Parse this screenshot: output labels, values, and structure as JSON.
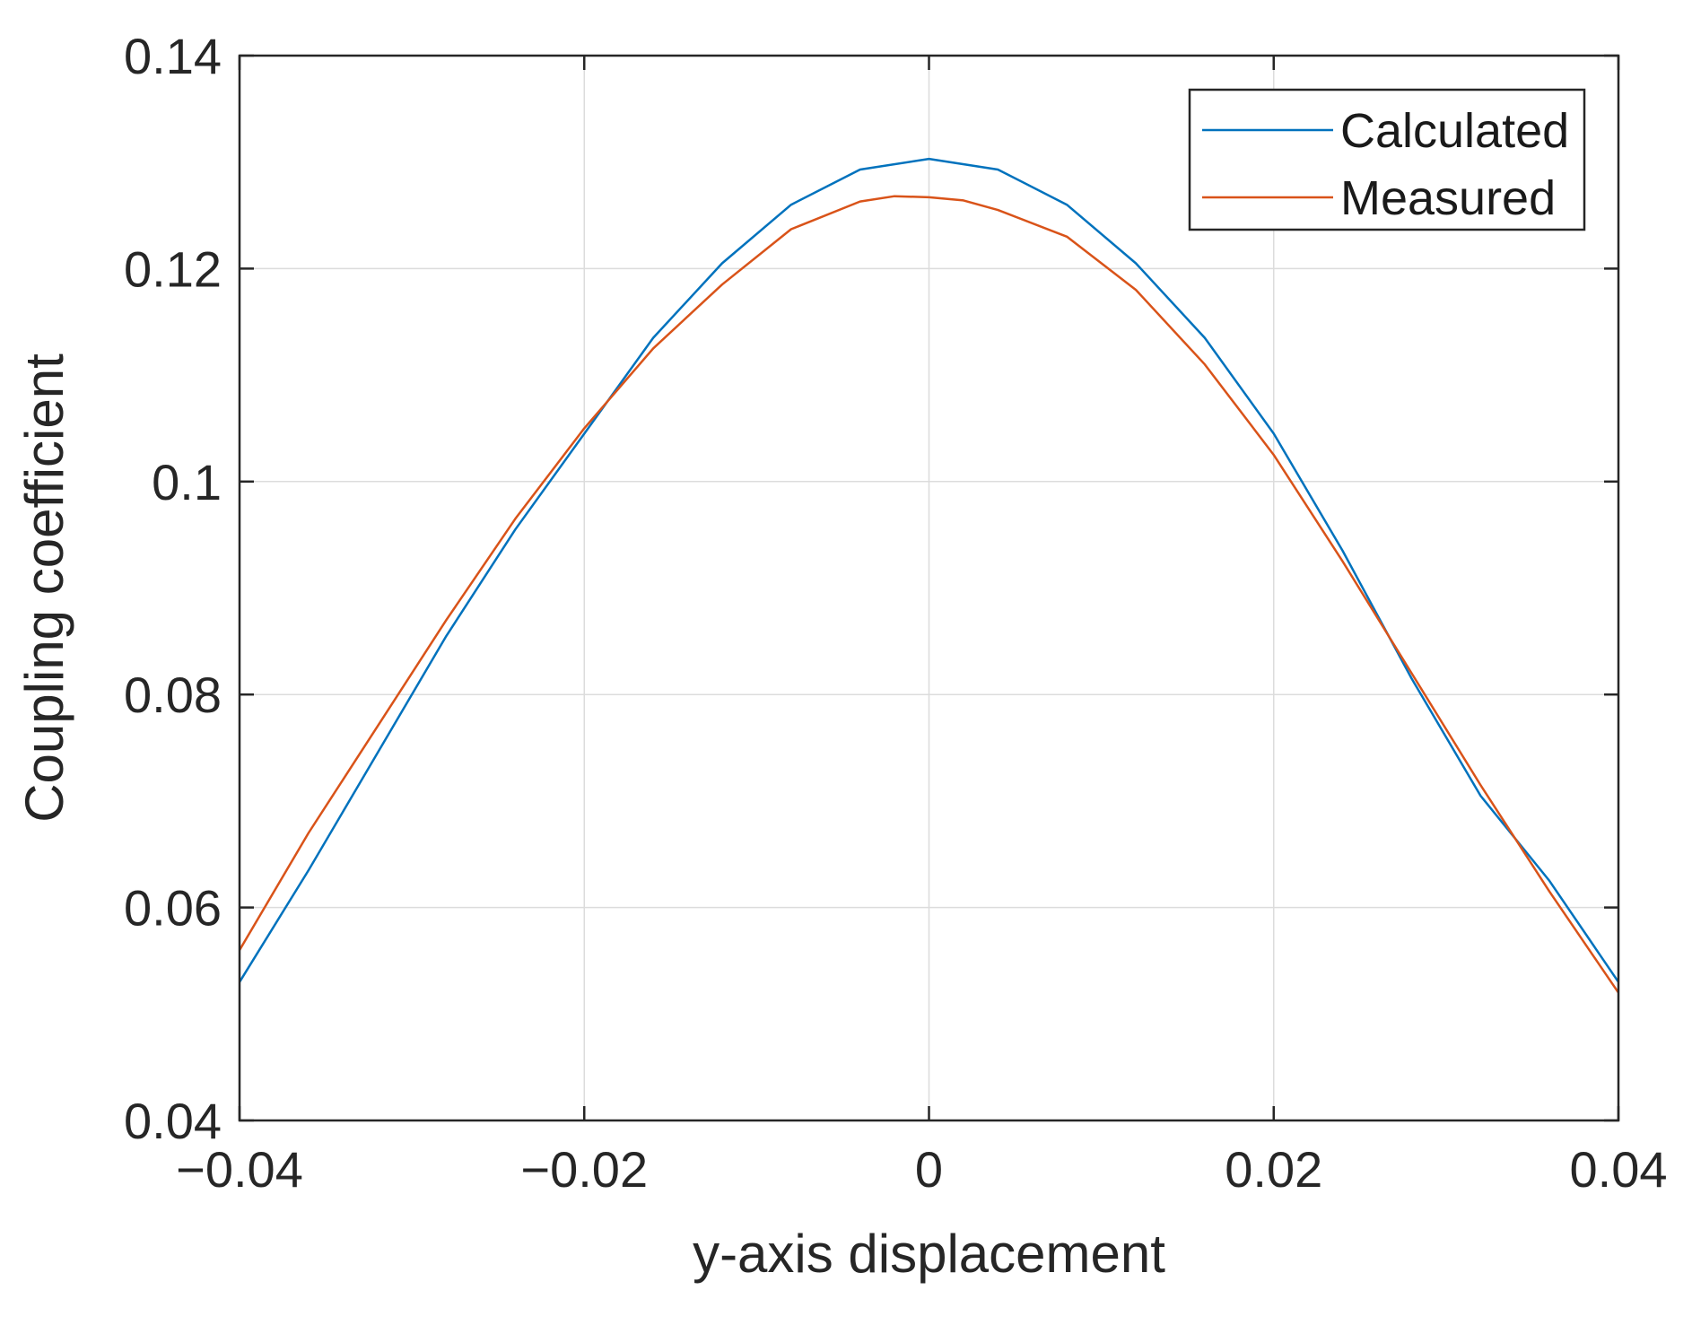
{
  "chart_data": {
    "type": "line",
    "xlabel": "y-axis displacement",
    "ylabel": "Coupling coefficient",
    "xlim": [
      -0.04,
      0.04
    ],
    "ylim": [
      0.04,
      0.14
    ],
    "xticks": [
      -0.04,
      -0.02,
      0,
      0.02,
      0.04
    ],
    "xtick_labels": [
      "−0.04",
      "−0.02",
      "0",
      "0.02",
      "0.04"
    ],
    "yticks": [
      0.04,
      0.06,
      0.08,
      0.1,
      0.12,
      0.14
    ],
    "ytick_labels": [
      "0.04",
      "0.06",
      "0.08",
      "0.1",
      "0.12",
      "0.14"
    ],
    "grid": true,
    "legend_position": "top-right",
    "series": [
      {
        "name": "Calculated",
        "color": "#0072BD",
        "x": [
          -0.04,
          -0.036,
          -0.032,
          -0.028,
          -0.024,
          -0.02,
          -0.016,
          -0.012,
          -0.008,
          -0.004,
          0,
          0.004,
          0.008,
          0.012,
          0.016,
          0.02,
          0.024,
          0.028,
          0.032,
          0.036,
          0.04
        ],
        "y": [
          0.053,
          0.0635,
          0.0745,
          0.0855,
          0.0955,
          0.1045,
          0.1135,
          0.1205,
          0.126,
          0.1293,
          0.1303,
          0.1293,
          0.126,
          0.1205,
          0.1135,
          0.1045,
          0.0935,
          0.0815,
          0.0705,
          0.0625,
          0.053
        ]
      },
      {
        "name": "Measured",
        "color": "#D95319",
        "x": [
          -0.04,
          -0.036,
          -0.032,
          -0.028,
          -0.024,
          -0.02,
          -0.016,
          -0.012,
          -0.008,
          -0.004,
          -0.002,
          0,
          0.002,
          0.004,
          0.008,
          0.012,
          0.016,
          0.02,
          0.024,
          0.028,
          0.032,
          0.036,
          0.04
        ],
        "y": [
          0.056,
          0.067,
          0.077,
          0.087,
          0.0965,
          0.105,
          0.1125,
          0.1185,
          0.1237,
          0.1263,
          0.1268,
          0.1267,
          0.1264,
          0.1255,
          0.123,
          0.118,
          0.111,
          0.1025,
          0.0925,
          0.082,
          0.0715,
          0.0615,
          0.052
        ]
      }
    ]
  }
}
